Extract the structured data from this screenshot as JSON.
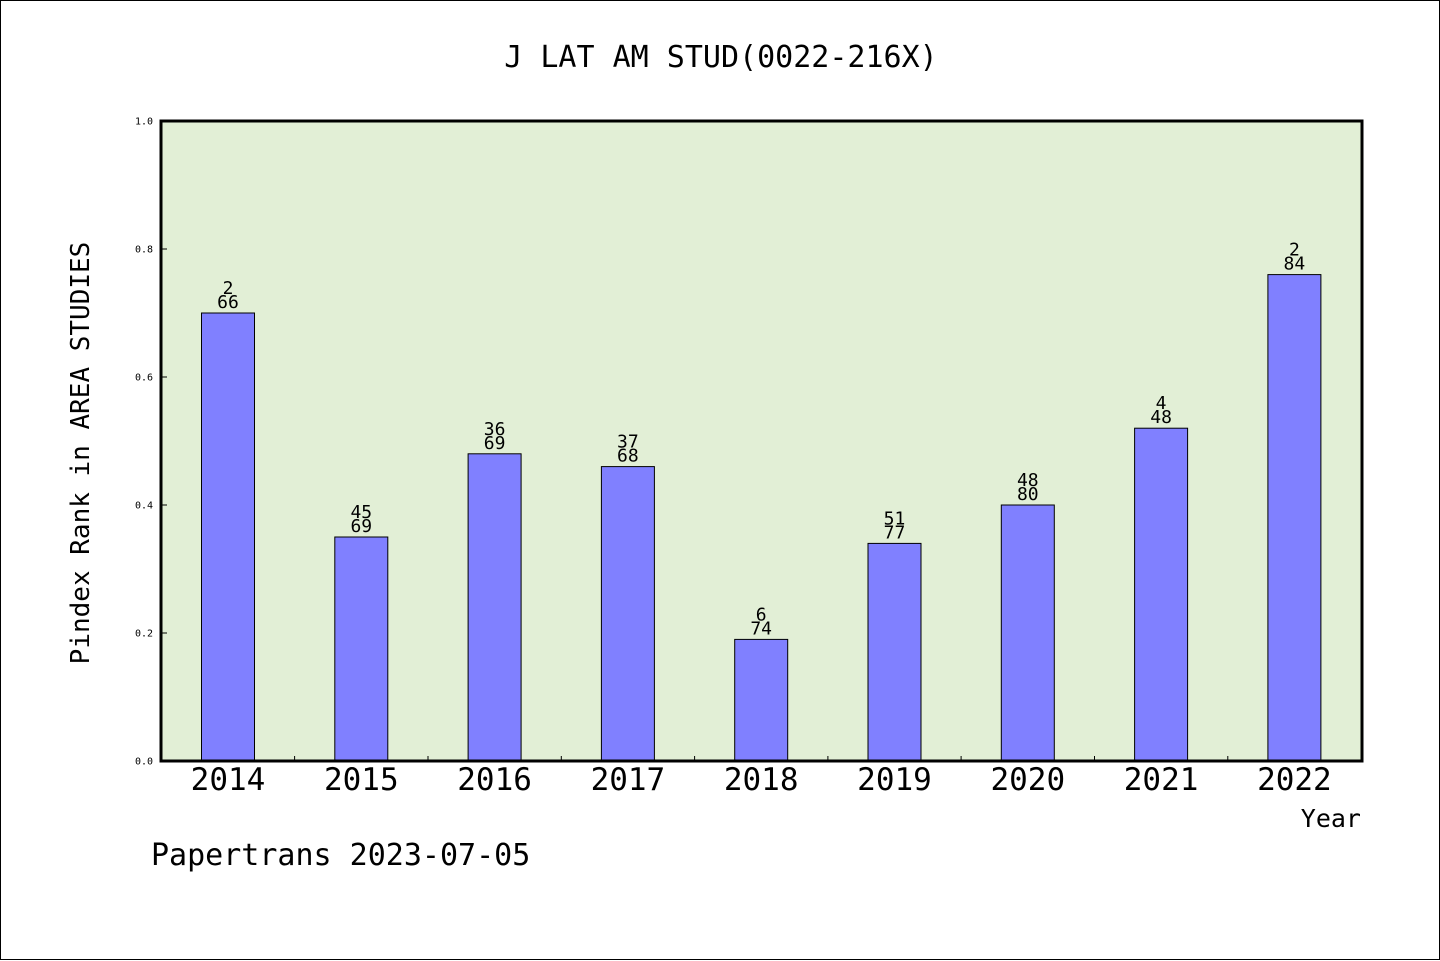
{
  "chart_data": {
    "type": "bar",
    "title": "J LAT AM STUD(0022-216X)",
    "xlabel": "Year",
    "ylabel": "Pindex Rank in AREA STUDIES",
    "categories": [
      "2014",
      "2015",
      "2016",
      "2017",
      "2018",
      "2019",
      "2020",
      "2021",
      "2022"
    ],
    "values": [
      0.7,
      0.35,
      0.48,
      0.46,
      0.19,
      0.34,
      0.4,
      0.52,
      0.76
    ],
    "rank": [
      "2",
      "45",
      "36",
      "37",
      "6",
      "51",
      "48",
      "4",
      "2"
    ],
    "total": [
      "66",
      "69",
      "69",
      "68",
      "74",
      "77",
      "80",
      "48",
      "84"
    ],
    "ylim": [
      0,
      1.0
    ],
    "yticks": [
      "0.0",
      "0.2",
      "0.4",
      "0.6",
      "0.8",
      "1.0"
    ],
    "grid": false,
    "colors": {
      "bar": "#8080ff",
      "plot_bg": "#e2efd6",
      "axis": "#000000"
    }
  },
  "footer": "Papertrans 2023-07-05"
}
